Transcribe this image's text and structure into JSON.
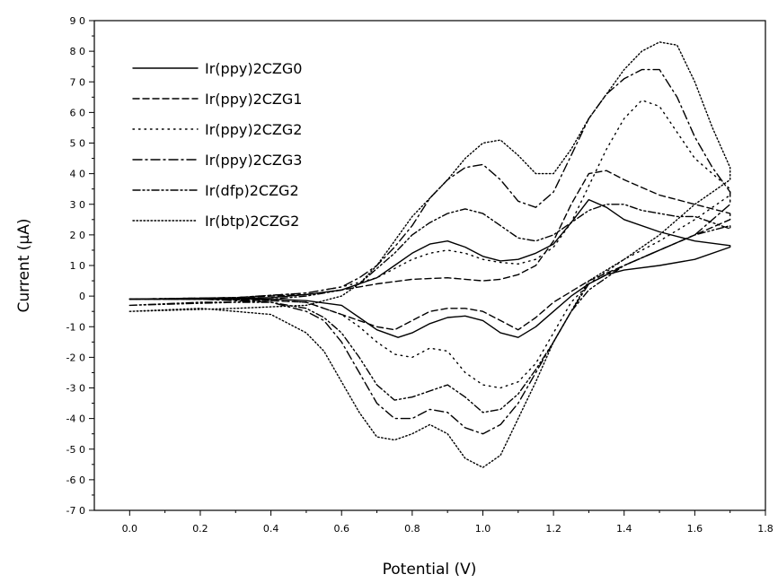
{
  "chart_data": {
    "type": "line",
    "xlabel": "Potential (V)",
    "ylabel": "Current  (μA)",
    "xlim": [
      -0.1,
      1.8
    ],
    "ylim": [
      -70,
      90
    ],
    "xticks": [
      0.0,
      0.2,
      0.4,
      0.6,
      0.8,
      1.0,
      1.2,
      1.4,
      1.6,
      1.8
    ],
    "xtick_labels": [
      "0.0",
      "0.2",
      "0.4",
      "0.6",
      "0.8",
      "1.0",
      "1.2",
      "1.4",
      "1.6",
      "1.8"
    ],
    "yticks": [
      -70,
      -60,
      -50,
      -40,
      -30,
      -20,
      -10,
      0,
      10,
      20,
      30,
      40,
      50,
      60,
      70,
      80,
      90
    ],
    "ytick_labels": [
      "-7 0",
      "-6 0",
      "-5 0",
      "-4 0",
      "-3 0",
      "-2 0",
      "-1 0",
      "0",
      "1 0",
      "2 0",
      "3 0",
      "4 0",
      "5 0",
      "6 0",
      "7 0",
      "8 0",
      "9 0"
    ],
    "grid": false,
    "legend_position": "top-left",
    "series": [
      {
        "name": "Ir(ppy)2CZG0",
        "dash": "solid",
        "x": [
          0.0,
          0.2,
          0.4,
          0.5,
          0.6,
          0.7,
          0.75,
          0.8,
          0.85,
          0.9,
          0.95,
          1.0,
          1.05,
          1.1,
          1.15,
          1.2,
          1.25,
          1.3,
          1.35,
          1.4,
          1.5,
          1.6,
          1.7,
          1.7,
          1.6,
          1.5,
          1.4,
          1.35,
          1.3,
          1.25,
          1.2,
          1.15,
          1.1,
          1.05,
          1.0,
          0.95,
          0.9,
          0.85,
          0.8,
          0.76,
          0.7,
          0.65,
          0.6,
          0.5,
          0.4,
          0.2,
          0.0
        ],
        "y": [
          -1,
          -1,
          -0.5,
          0.5,
          2,
          6,
          10,
          14,
          17,
          18,
          16,
          13,
          11.5,
          12,
          14,
          17,
          24,
          31.5,
          29,
          25,
          21,
          18,
          16.5,
          16,
          12,
          10,
          8.5,
          7,
          4,
          0,
          -5,
          -10,
          -13.5,
          -12,
          -8,
          -6.5,
          -7,
          -9,
          -12,
          -13.5,
          -11,
          -7,
          -3,
          -1.5,
          -1,
          -1,
          -1
        ]
      },
      {
        "name": "Ir(ppy)2CZG1",
        "dash": "dashed",
        "x": [
          0.0,
          0.3,
          0.5,
          0.6,
          0.7,
          0.8,
          0.9,
          0.95,
          1.0,
          1.05,
          1.1,
          1.15,
          1.2,
          1.25,
          1.3,
          1.35,
          1.4,
          1.5,
          1.6,
          1.7,
          1.7,
          1.6,
          1.5,
          1.4,
          1.3,
          1.2,
          1.15,
          1.1,
          1.05,
          1.0,
          0.95,
          0.9,
          0.85,
          0.8,
          0.75,
          0.7,
          0.6,
          0.5,
          0.4,
          0.2,
          0.0
        ],
        "y": [
          -1,
          -0.5,
          0.5,
          2,
          4,
          5.5,
          6,
          5.5,
          5,
          5.5,
          7,
          10,
          18,
          30,
          40,
          41,
          38,
          33,
          30,
          27,
          25,
          20,
          15,
          10,
          5,
          -2,
          -7,
          -11,
          -8,
          -5,
          -4,
          -4,
          -5,
          -8,
          -11,
          -10,
          -6,
          -2,
          -1.5,
          -1,
          -1
        ]
      },
      {
        "name": "Ir(ppy)2CZG2",
        "dash": "dotted",
        "x": [
          0.0,
          0.3,
          0.5,
          0.6,
          0.7,
          0.75,
          0.8,
          0.85,
          0.9,
          0.95,
          1.0,
          1.05,
          1.1,
          1.15,
          1.2,
          1.25,
          1.3,
          1.35,
          1.4,
          1.45,
          1.5,
          1.6,
          1.7,
          1.7,
          1.6,
          1.5,
          1.4,
          1.3,
          1.25,
          1.2,
          1.15,
          1.1,
          1.05,
          1.0,
          0.95,
          0.9,
          0.85,
          0.8,
          0.75,
          0.7,
          0.65,
          0.6,
          0.5,
          0.4,
          0.2,
          0.0
        ],
        "y": [
          -1,
          -0.5,
          1,
          3,
          6,
          9,
          12,
          14,
          15,
          14,
          12,
          11,
          10.5,
          12,
          16,
          24,
          36,
          48,
          58,
          64,
          62,
          45,
          35,
          33,
          25,
          18,
          12,
          4,
          -2,
          -12,
          -22,
          -28,
          -30,
          -29,
          -25,
          -18,
          -17,
          -20,
          -19,
          -15,
          -10,
          -6,
          -2,
          -1.5,
          -1,
          -1
        ]
      },
      {
        "name": "Ir(ppy)2CZG3",
        "dash": "dashdot",
        "x": [
          0.0,
          0.3,
          0.5,
          0.6,
          0.65,
          0.7,
          0.75,
          0.8,
          0.85,
          0.9,
          0.95,
          1.0,
          1.05,
          1.1,
          1.15,
          1.2,
          1.25,
          1.3,
          1.35,
          1.4,
          1.45,
          1.5,
          1.55,
          1.6,
          1.65,
          1.7,
          1.7,
          1.6,
          1.5,
          1.4,
          1.3,
          1.25,
          1.2,
          1.15,
          1.1,
          1.05,
          1.0,
          0.95,
          0.9,
          0.85,
          0.8,
          0.75,
          0.7,
          0.65,
          0.6,
          0.55,
          0.5,
          0.4,
          0.2,
          0.0
        ],
        "y": [
          -1,
          -0.5,
          1,
          3,
          6,
          10,
          16,
          23,
          32,
          38,
          42,
          43,
          38,
          31,
          29,
          34,
          46,
          58,
          66,
          71,
          74,
          74,
          65,
          52,
          42,
          34,
          30,
          20,
          15,
          10,
          4,
          -5,
          -15,
          -25,
          -35,
          -42,
          -45,
          -43,
          -38,
          -37,
          -40,
          -40,
          -35,
          -25,
          -15,
          -8,
          -5,
          -2,
          -1,
          -1
        ]
      },
      {
        "name": "Ir(dfp)2CZG2",
        "dash": "dashdotdot",
        "x": [
          0.0,
          0.3,
          0.5,
          0.6,
          0.65,
          0.7,
          0.75,
          0.8,
          0.85,
          0.9,
          0.95,
          1.0,
          1.05,
          1.1,
          1.15,
          1.2,
          1.25,
          1.3,
          1.35,
          1.4,
          1.45,
          1.5,
          1.55,
          1.6,
          1.65,
          1.7,
          1.7,
          1.6,
          1.5,
          1.4,
          1.3,
          1.25,
          1.2,
          1.15,
          1.1,
          1.05,
          1.0,
          0.95,
          0.9,
          0.85,
          0.8,
          0.75,
          0.7,
          0.65,
          0.6,
          0.55,
          0.5,
          0.4,
          0.2,
          0.0
        ],
        "y": [
          -3,
          -2,
          0,
          2,
          4,
          9,
          14,
          20,
          24,
          27,
          28.5,
          27,
          23,
          19,
          18,
          20,
          24,
          28,
          30,
          30,
          28,
          27,
          26,
          26,
          24,
          22,
          23,
          20,
          15,
          10,
          2,
          -5,
          -15,
          -24,
          -32,
          -37,
          -38,
          -33,
          -29,
          -31,
          -33,
          -34,
          -29,
          -20,
          -12,
          -7,
          -4,
          -2,
          -2,
          -3
        ]
      },
      {
        "name": "Ir(btp)2CZG2",
        "dash": "densedot",
        "x": [
          0.0,
          0.3,
          0.5,
          0.6,
          0.65,
          0.7,
          0.75,
          0.8,
          0.85,
          0.9,
          0.95,
          1.0,
          1.05,
          1.1,
          1.15,
          1.2,
          1.25,
          1.3,
          1.35,
          1.4,
          1.45,
          1.5,
          1.55,
          1.6,
          1.65,
          1.7,
          1.7,
          1.6,
          1.5,
          1.4,
          1.3,
          1.25,
          1.2,
          1.15,
          1.1,
          1.05,
          1.0,
          0.95,
          0.9,
          0.85,
          0.8,
          0.75,
          0.7,
          0.65,
          0.6,
          0.55,
          0.5,
          0.4,
          0.2,
          0.0
        ],
        "y": [
          -5,
          -4,
          -3,
          0,
          4,
          10,
          18,
          26,
          32,
          38,
          45,
          50,
          51,
          46,
          40,
          40,
          48,
          58,
          66,
          74,
          80,
          83,
          82,
          70,
          55,
          42,
          38,
          30,
          20,
          12,
          5,
          -5,
          -15,
          -28,
          -40,
          -52,
          -56,
          -53,
          -45,
          -42,
          -45,
          -47,
          -46,
          -38,
          -28,
          -18,
          -12,
          -6,
          -4,
          -5
        ]
      }
    ]
  }
}
